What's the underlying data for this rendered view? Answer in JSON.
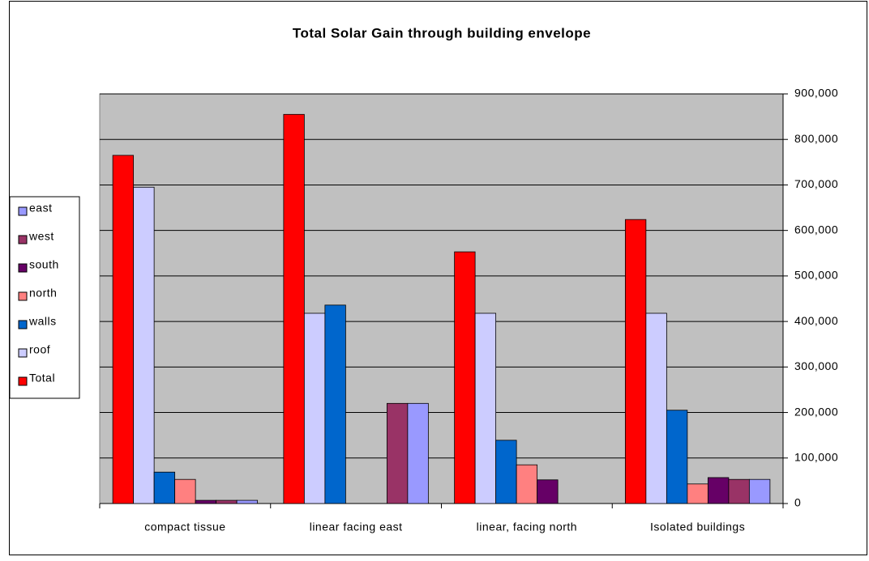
{
  "chart_data": {
    "type": "bar",
    "title": "Total Solar Gain through building envelope",
    "categories": [
      "compact tissue",
      "linear facing east",
      "linear, facing north",
      "Isolated buildings"
    ],
    "series": [
      {
        "name": "Total",
        "color": "#ff0000",
        "values": [
          765000,
          855000,
          553000,
          624000
        ]
      },
      {
        "name": "roof",
        "color": "#ccccff",
        "values": [
          695000,
          418000,
          418000,
          418000
        ]
      },
      {
        "name": "walls",
        "color": "#0066cc",
        "values": [
          69000,
          436000,
          139000,
          205000
        ]
      },
      {
        "name": "north",
        "color": "#ff8080",
        "values": [
          53000,
          0,
          85000,
          43000
        ]
      },
      {
        "name": "south",
        "color": "#660066",
        "values": [
          7000,
          0,
          52000,
          57000
        ]
      },
      {
        "name": "west",
        "color": "#993366",
        "values": [
          7000,
          220000,
          0,
          53000
        ]
      },
      {
        "name": "east",
        "color": "#9999ff",
        "values": [
          7000,
          220000,
          0,
          53000
        ]
      }
    ],
    "ylim": [
      0,
      900000
    ],
    "yticks": [
      0,
      {
        "value": 100000,
        "label": "100,000"
      },
      {
        "value": 200000,
        "label": "200,000"
      },
      {
        "value": 300000,
        "label": "300,000"
      },
      {
        "value": 400000,
        "label": "400,000"
      },
      {
        "value": 500000,
        "label": "500,000"
      },
      {
        "value": 600000,
        "label": "600,000"
      },
      {
        "value": 700000,
        "label": "700,000"
      },
      {
        "value": 800000,
        "label": "800,000"
      },
      {
        "value": 900000,
        "label": "900,000"
      }
    ],
    "grid": true,
    "legend": "left",
    "axis_side": "right"
  }
}
